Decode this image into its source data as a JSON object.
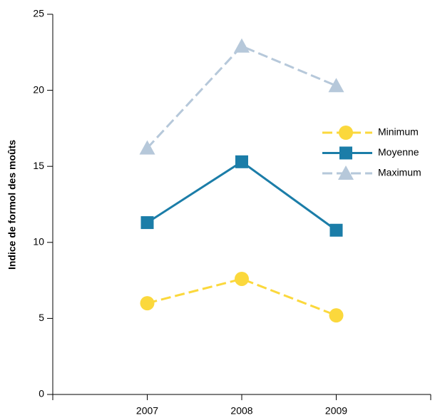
{
  "chart_data": {
    "type": "line",
    "y_label": "Indice de formol des moûts",
    "categories": [
      "2007",
      "2008",
      "2009"
    ],
    "series": [
      {
        "name": "Minimum",
        "color": "#fbd83c",
        "dash": true,
        "marker": "circle",
        "values": [
          6.0,
          7.6,
          5.2
        ]
      },
      {
        "name": "Moyenne",
        "color": "#1b7da8",
        "dash": false,
        "marker": "square",
        "values": [
          11.3,
          15.3,
          10.8
        ]
      },
      {
        "name": "Maximum",
        "color": "#b6c8da",
        "dash": true,
        "marker": "triangle",
        "values": [
          16.2,
          22.9,
          20.3
        ]
      }
    ],
    "ylim": [
      0,
      25
    ],
    "yticks": [
      0,
      5,
      10,
      15,
      20,
      25
    ],
    "legend": "right"
  }
}
